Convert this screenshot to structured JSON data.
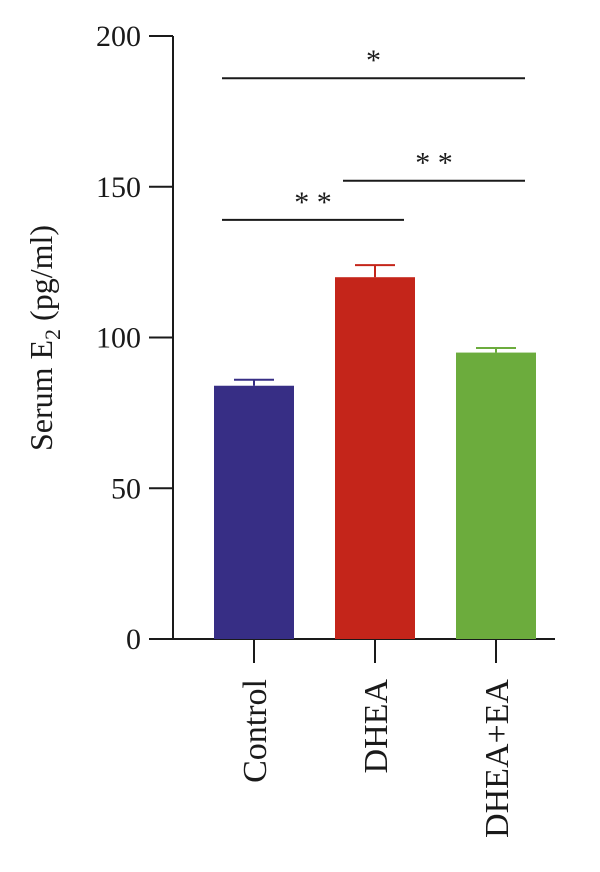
{
  "chart_data": {
    "type": "bar",
    "categories": [
      "Control",
      "DHEA",
      "DHEA+EA"
    ],
    "values": [
      84,
      120,
      95
    ],
    "errors": [
      2,
      4,
      1.5
    ],
    "colors": [
      "#372E85",
      "#C4251A",
      "#6CAC3D"
    ],
    "ylabel": {
      "prefix": "Serum E",
      "subscript": "2",
      "suffix": " (pg/ml)"
    },
    "xlabel": "",
    "ylim": [
      0,
      200
    ],
    "yticks": [
      0,
      50,
      100,
      150,
      200
    ],
    "grid": false,
    "legend": "none",
    "significance": [
      {
        "from": 0,
        "to": 1,
        "label": "* *",
        "y": 139
      },
      {
        "from": 1,
        "to": 2,
        "label": "* *",
        "y": 152
      },
      {
        "from": 0,
        "to": 2,
        "label": "*",
        "y": 186
      }
    ]
  }
}
